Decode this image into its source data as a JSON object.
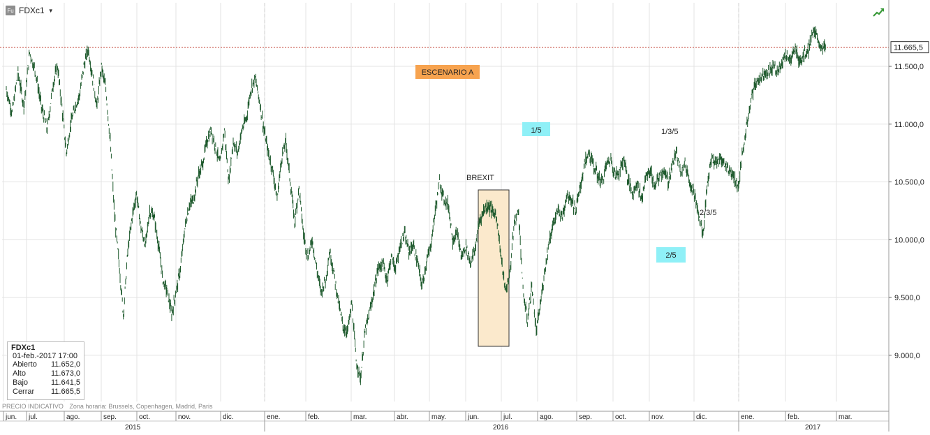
{
  "ticker": {
    "badge": "Fu",
    "symbol": "FDXc1"
  },
  "last_price_label": "11.665,5",
  "info_box": {
    "title": "FDXc1",
    "datetime": "01-feb.-2017 17:00",
    "rows": [
      {
        "label": "Abierto",
        "value": "11.652,0"
      },
      {
        "label": "Alto",
        "value": "11.673,0"
      },
      {
        "label": "Bajo",
        "value": "11.641,5"
      },
      {
        "label": "Cerrar",
        "value": "11.665,5"
      }
    ]
  },
  "footer": {
    "note": "PRECIO INDICATIVO",
    "timezone": "Zona horaria: Brussels, Copenhagen, Madrid, Paris"
  },
  "colors": {
    "price": "#1e5a2d",
    "last_price_line": "#c0392b",
    "scenario": "#f7a34f",
    "wave_label": "#8ff0f7",
    "brexit_box": "#fbe9cc",
    "grid": "#e3e3e3"
  },
  "chart_data": {
    "type": "line",
    "style": "ohlc-bars",
    "series": [
      {
        "values": [
          [
            0,
            11300
          ],
          [
            4,
            11100
          ],
          [
            8,
            11450
          ],
          [
            12,
            11150
          ],
          [
            16,
            11620
          ],
          [
            20,
            11450
          ],
          [
            24,
            11150
          ],
          [
            28,
            10950
          ],
          [
            32,
            11350
          ],
          [
            35,
            11500
          ],
          [
            38,
            11150
          ],
          [
            41,
            10750
          ],
          [
            44,
            11000
          ],
          [
            47,
            11150
          ],
          [
            50,
            11250
          ],
          [
            53,
            11500
          ],
          [
            56,
            11650
          ],
          [
            59,
            11400
          ],
          [
            62,
            11150
          ],
          [
            65,
            11500
          ],
          [
            68,
            11300
          ],
          [
            71,
            10850
          ],
          [
            74,
            10200
          ],
          [
            77,
            9800
          ],
          [
            80,
            9350
          ],
          [
            83,
            9900
          ],
          [
            86,
            10200
          ],
          [
            89,
            10400
          ],
          [
            92,
            10100
          ],
          [
            95,
            9950
          ],
          [
            98,
            10250
          ],
          [
            101,
            10200
          ],
          [
            104,
            9950
          ],
          [
            107,
            9650
          ],
          [
            110,
            9550
          ],
          [
            113,
            9350
          ],
          [
            116,
            9550
          ],
          [
            119,
            9750
          ],
          [
            122,
            10100
          ],
          [
            125,
            10300
          ],
          [
            128,
            10350
          ],
          [
            131,
            10550
          ],
          [
            134,
            10650
          ],
          [
            137,
            10850
          ],
          [
            140,
            10950
          ],
          [
            143,
            10800
          ],
          [
            146,
            10650
          ],
          [
            149,
            10950
          ],
          [
            152,
            10500
          ],
          [
            155,
            10850
          ],
          [
            158,
            10750
          ],
          [
            161,
            10950
          ],
          [
            164,
            11050
          ],
          [
            167,
            11300
          ],
          [
            170,
            11400
          ],
          [
            173,
            11200
          ],
          [
            176,
            10950
          ],
          [
            179,
            10750
          ],
          [
            182,
            10600
          ],
          [
            185,
            10350
          ],
          [
            188,
            10700
          ],
          [
            191,
            10850
          ],
          [
            194,
            10500
          ],
          [
            197,
            10150
          ],
          [
            200,
            10450
          ],
          [
            203,
            10050
          ],
          [
            206,
            9850
          ],
          [
            209,
            10000
          ],
          [
            212,
            9750
          ],
          [
            215,
            9550
          ],
          [
            218,
            9650
          ],
          [
            221,
            9900
          ],
          [
            224,
            9700
          ],
          [
            227,
            9450
          ],
          [
            230,
            9250
          ],
          [
            233,
            9200
          ],
          [
            236,
            9450
          ],
          [
            239,
            8950
          ],
          [
            242,
            8800
          ],
          [
            245,
            9200
          ],
          [
            248,
            9350
          ],
          [
            251,
            9550
          ],
          [
            254,
            9750
          ],
          [
            257,
            9800
          ],
          [
            260,
            9650
          ],
          [
            263,
            9850
          ],
          [
            266,
            9750
          ],
          [
            269,
            9950
          ],
          [
            272,
            10050
          ],
          [
            275,
            9900
          ],
          [
            278,
            9950
          ],
          [
            281,
            9800
          ],
          [
            284,
            9600
          ],
          [
            287,
            9800
          ],
          [
            290,
            9950
          ],
          [
            293,
            10250
          ],
          [
            296,
            10500
          ],
          [
            299,
            10350
          ],
          [
            302,
            10300
          ],
          [
            305,
            10000
          ],
          [
            308,
            10050
          ],
          [
            311,
            9850
          ],
          [
            314,
            9950
          ],
          [
            317,
            9800
          ],
          [
            320,
            9900
          ],
          [
            323,
            10150
          ],
          [
            326,
            10250
          ],
          [
            329,
            10300
          ],
          [
            332,
            10250
          ],
          [
            335,
            10200
          ],
          [
            338,
            9850
          ],
          [
            341,
            9550
          ],
          [
            344,
            9700
          ],
          [
            347,
            10150
          ],
          [
            350,
            10250
          ],
          [
            353,
            9550
          ],
          [
            356,
            9300
          ],
          [
            359,
            9600
          ],
          [
            362,
            9200
          ],
          [
            365,
            9450
          ],
          [
            368,
            9750
          ],
          [
            371,
            10000
          ],
          [
            374,
            10150
          ],
          [
            377,
            10250
          ],
          [
            380,
            10200
          ],
          [
            383,
            10400
          ],
          [
            386,
            10350
          ],
          [
            389,
            10250
          ],
          [
            392,
            10450
          ],
          [
            395,
            10650
          ],
          [
            398,
            10750
          ],
          [
            401,
            10650
          ],
          [
            404,
            10550
          ],
          [
            407,
            10500
          ],
          [
            410,
            10650
          ],
          [
            413,
            10700
          ],
          [
            416,
            10550
          ],
          [
            419,
            10600
          ],
          [
            422,
            10700
          ],
          [
            425,
            10500
          ],
          [
            428,
            10400
          ],
          [
            431,
            10500
          ],
          [
            434,
            10350
          ],
          [
            437,
            10550
          ],
          [
            440,
            10600
          ],
          [
            443,
            10450
          ],
          [
            446,
            10550
          ],
          [
            449,
            10600
          ],
          [
            452,
            10500
          ],
          [
            455,
            10650
          ],
          [
            458,
            10750
          ],
          [
            461,
            10600
          ],
          [
            464,
            10650
          ],
          [
            467,
            10500
          ],
          [
            470,
            10400
          ],
          [
            473,
            10200
          ],
          [
            476,
            10050
          ],
          [
            479,
            10500
          ],
          [
            482,
            10700
          ],
          [
            485,
            10650
          ],
          [
            488,
            10700
          ],
          [
            491,
            10650
          ],
          [
            494,
            10600
          ],
          [
            497,
            10550
          ],
          [
            500,
            10450
          ],
          [
            503,
            10750
          ],
          [
            506,
            11000
          ],
          [
            509,
            11250
          ],
          [
            512,
            11350
          ],
          [
            515,
            11400
          ],
          [
            518,
            11450
          ],
          [
            521,
            11450
          ],
          [
            524,
            11500
          ],
          [
            527,
            11450
          ],
          [
            530,
            11550
          ],
          [
            533,
            11600
          ],
          [
            536,
            11550
          ],
          [
            539,
            11650
          ],
          [
            542,
            11550
          ],
          [
            545,
            11600
          ],
          [
            548,
            11650
          ],
          [
            551,
            11800
          ],
          [
            554,
            11750
          ],
          [
            557,
            11650
          ],
          [
            560,
            11665.5
          ]
        ]
      }
    ],
    "y_axis": {
      "min": 8600,
      "max": 12050,
      "ticks": [
        "9.000,0",
        "9.500,0",
        "10.000,0",
        "10.500,0",
        "11.000,0",
        "11.500,0"
      ],
      "tick_values": [
        9000,
        9500,
        10000,
        10500,
        11000,
        11500
      ]
    },
    "x_axis": {
      "months": [
        "jun.",
        "jul.",
        "ago.",
        "sep.",
        "oct.",
        "nov.",
        "dic.",
        "ene.",
        "feb.",
        "mar.",
        "abr.",
        "may.",
        "jun.",
        "jul.",
        "ago.",
        "sep.",
        "oct.",
        "nov.",
        "dic.",
        "ene.",
        "feb.",
        "mar."
      ],
      "years": [
        "2015",
        "2016",
        "2017"
      ]
    },
    "last_price": 11665.5,
    "annotations": [
      {
        "text": "ESCENARIO A",
        "style": "orange-box"
      },
      {
        "text": "1/5",
        "style": "cyan-box"
      },
      {
        "text": "2/5",
        "style": "cyan-box"
      },
      {
        "text": "BREXIT",
        "style": "plain"
      },
      {
        "text": "1/3/5",
        "style": "plain"
      },
      {
        "text": "2/3/5",
        "style": "plain"
      }
    ]
  }
}
